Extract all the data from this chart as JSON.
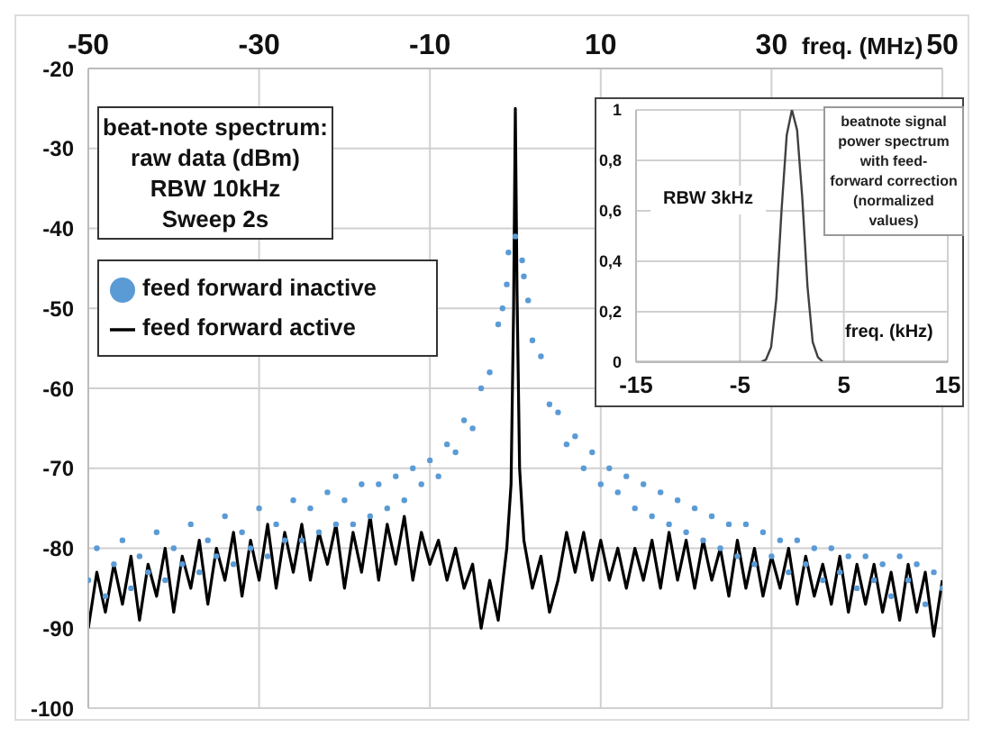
{
  "chart_data": [
    {
      "type": "line",
      "xlabel": "freq. (MHz)",
      "annotations": [
        "beat-note spectrum:\nraw data  (dBm)\nRBW 10kHz\nSweep 2s"
      ],
      "xlim": [
        -50,
        50
      ],
      "xticks": [
        -50,
        -30,
        -10,
        10,
        30,
        50
      ],
      "ylim": [
        -100,
        -20
      ],
      "yticks": [
        -100,
        -90,
        -80,
        -70,
        -60,
        -50,
        -40,
        -30,
        -20
      ],
      "grid": true,
      "legend": "top left",
      "series": [
        {
          "name": "feed forward inactive",
          "type": "scatter",
          "marker": "circle",
          "color": "#5b9bd5",
          "x": [
            -50,
            -49,
            -48,
            -47,
            -46,
            -45,
            -44,
            -43,
            -42,
            -41,
            -40,
            -39,
            -38,
            -37,
            -36,
            -35,
            -34,
            -33,
            -32,
            -31,
            -30,
            -29,
            -28,
            -27,
            -26,
            -25,
            -24,
            -23,
            -22,
            -21,
            -20,
            -19,
            -18,
            -17,
            -16,
            -15,
            -14,
            -13,
            -12,
            -11,
            -10,
            -9,
            -8,
            -7,
            -6,
            -5,
            -4,
            -3,
            -2,
            -1,
            0,
            1,
            2,
            3,
            4,
            5,
            6,
            7,
            8,
            9,
            10,
            11,
            12,
            13,
            14,
            15,
            16,
            17,
            18,
            19,
            20,
            21,
            22,
            23,
            24,
            25,
            26,
            27,
            28,
            29,
            30,
            31,
            32,
            33,
            34,
            35,
            36,
            37,
            38,
            39,
            40,
            41,
            42,
            43,
            44,
            45,
            46,
            47,
            48,
            49,
            50,
            -0.8,
            0.8,
            -1.5,
            1.5
          ],
          "values": [
            -84,
            -80,
            -86,
            -82,
            -79,
            -85,
            -81,
            -83,
            -78,
            -84,
            -80,
            -82,
            -77,
            -83,
            -79,
            -81,
            -76,
            -82,
            -78,
            -80,
            -75,
            -81,
            -77,
            -79,
            -74,
            -79,
            -75,
            -78,
            -73,
            -77,
            -74,
            -77,
            -72,
            -76,
            -72,
            -75,
            -71,
            -74,
            -70,
            -72,
            -69,
            -71,
            -67,
            -68,
            -64,
            -65,
            -60,
            -58,
            -52,
            -47,
            -41,
            -46,
            -54,
            -56,
            -62,
            -63,
            -67,
            -66,
            -70,
            -68,
            -72,
            -70,
            -73,
            -71,
            -75,
            -72,
            -76,
            -73,
            -77,
            -74,
            -78,
            -75,
            -79,
            -76,
            -80,
            -77,
            -81,
            -77,
            -82,
            -78,
            -81,
            -79,
            -83,
            -79,
            -82,
            -80,
            -84,
            -80,
            -83,
            -81,
            -85,
            -81,
            -84,
            -82,
            -86,
            -81,
            -84,
            -82,
            -87,
            -83,
            -85,
            -43,
            -44,
            -50,
            -49
          ]
        },
        {
          "name": "feed forward active",
          "type": "line",
          "marker": "none",
          "line_style": "solid",
          "color": "#000000",
          "x": [
            -50,
            -49,
            -48,
            -47,
            -46,
            -45,
            -44,
            -43,
            -42,
            -41,
            -40,
            -39,
            -38,
            -37,
            -36,
            -35,
            -34,
            -33,
            -32,
            -31,
            -30,
            -29,
            -28,
            -27,
            -26,
            -25,
            -24,
            -23,
            -22,
            -21,
            -20,
            -19,
            -18,
            -17,
            -16,
            -15,
            -14,
            -13,
            -12,
            -11,
            -10,
            -9,
            -8,
            -7,
            -6,
            -5,
            -4,
            -3,
            -2,
            -1,
            -0.5,
            -0.2,
            0,
            0.2,
            0.5,
            1,
            2,
            3,
            4,
            5,
            6,
            7,
            8,
            9,
            10,
            11,
            12,
            13,
            14,
            15,
            16,
            17,
            18,
            19,
            20,
            21,
            22,
            23,
            24,
            25,
            26,
            27,
            28,
            29,
            30,
            31,
            32,
            33,
            34,
            35,
            36,
            37,
            38,
            39,
            40,
            41,
            42,
            43,
            44,
            45,
            46,
            47,
            48,
            49,
            50
          ],
          "values": [
            -90,
            -83,
            -88,
            -82,
            -87,
            -81,
            -89,
            -82,
            -86,
            -80,
            -88,
            -81,
            -85,
            -79,
            -87,
            -80,
            -84,
            -78,
            -86,
            -79,
            -84,
            -77,
            -85,
            -78,
            -83,
            -77,
            -84,
            -78,
            -82,
            -77,
            -85,
            -78,
            -83,
            -76,
            -84,
            -77,
            -82,
            -76,
            -84,
            -78,
            -82,
            -79,
            -84,
            -80,
            -85,
            -82,
            -90,
            -84,
            -89,
            -80,
            -72,
            -50,
            -25,
            -48,
            -70,
            -79,
            -85,
            -81,
            -88,
            -84,
            -78,
            -83,
            -78,
            -84,
            -79,
            -84,
            -80,
            -85,
            -80,
            -84,
            -79,
            -85,
            -78,
            -84,
            -79,
            -85,
            -79,
            -84,
            -80,
            -86,
            -79,
            -85,
            -80,
            -86,
            -81,
            -85,
            -80,
            -87,
            -81,
            -86,
            -82,
            -87,
            -81,
            -88,
            -82,
            -87,
            -82,
            -88,
            -83,
            -89,
            -82,
            -88,
            -83,
            -91,
            -84
          ]
        }
      ]
    },
    {
      "type": "line",
      "title": "beatnote signal\npower spectrum\nwith feed-\nforward correction\n(normalized values)",
      "xlabel": "freq. (kHz)",
      "annotations": [
        "RBW 3kHz"
      ],
      "xlim": [
        -15,
        15
      ],
      "xticks": [
        -15,
        -5,
        5,
        15
      ],
      "ylim": [
        0,
        1
      ],
      "yticks": [
        0,
        {
          "value": 0.2,
          "label": "0,2"
        },
        {
          "value": 0.4,
          "label": "0,4"
        },
        {
          "value": 0.6,
          "label": "0,6"
        },
        {
          "value": 0.8,
          "label": "0,8"
        },
        1
      ],
      "grid": true,
      "marker": "none",
      "line_style": "solid",
      "series": [
        {
          "color": "#404040",
          "x": [
            -15,
            -10,
            -5,
            -3,
            -2.5,
            -2,
            -1.5,
            -1,
            -0.5,
            0,
            0.5,
            1,
            1.5,
            2,
            2.5,
            3,
            5,
            10,
            15
          ],
          "values": [
            0,
            0,
            0,
            0,
            0.01,
            0.06,
            0.25,
            0.6,
            0.9,
            1,
            0.92,
            0.65,
            0.3,
            0.08,
            0.02,
            0,
            0,
            0,
            0
          ]
        }
      ]
    }
  ]
}
